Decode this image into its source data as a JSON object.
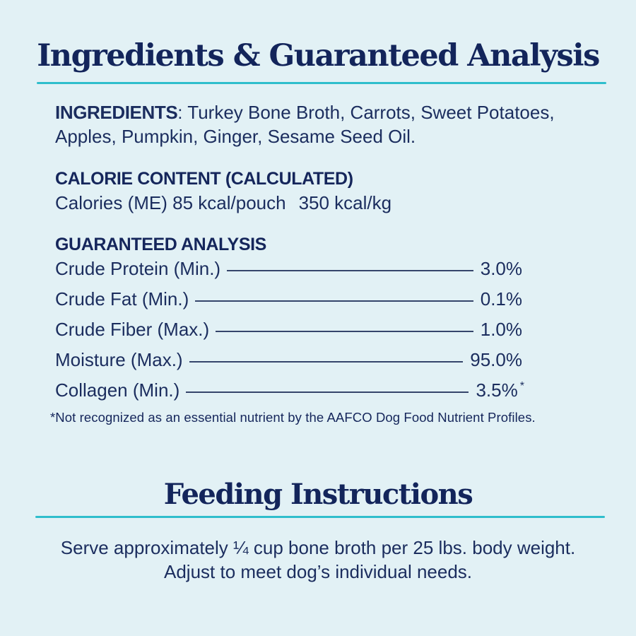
{
  "page": {
    "background_color": "#e2f1f5",
    "navy_color": "#13255b",
    "teal_color": "#2fbecc"
  },
  "header": {
    "title": "Ingredients & Guaranteed Analysis"
  },
  "ingredients": {
    "label": "INGREDIENTS",
    "separator": ": ",
    "text": "Turkey Bone Broth, Carrots, Sweet Potatoes, Apples, Pumpkin, Ginger, Sesame Seed Oil."
  },
  "calorie_content": {
    "heading": "CALORIE CONTENT (CALCULATED)",
    "line_part1": "Calories (ME) 85 kcal/pouch",
    "line_part2": "350 kcal/kg"
  },
  "guaranteed_analysis": {
    "heading": "GUARANTEED ANALYSIS",
    "rows": [
      {
        "label": "Crude Protein (Min.)",
        "value": "3.0%",
        "marker": ""
      },
      {
        "label": "Crude Fat (Min.)",
        "value": "0.1%",
        "marker": ""
      },
      {
        "label": "Crude Fiber (Max.)",
        "value": "1.0%",
        "marker": ""
      },
      {
        "label": "Moisture (Max.)",
        "value": "95.0%",
        "marker": ""
      },
      {
        "label": "Collagen (Min.)",
        "value": "3.5%",
        "marker": "*"
      }
    ],
    "footnote": "*Not recognized as an essential nutrient by the AAFCO Dog Food Nutrient Profiles."
  },
  "feeding": {
    "title": "Feeding Instructions",
    "line1": "Serve approximately ¼ cup bone broth per 25 lbs. body weight.",
    "line2": "Adjust to meet dog’s individual needs."
  }
}
